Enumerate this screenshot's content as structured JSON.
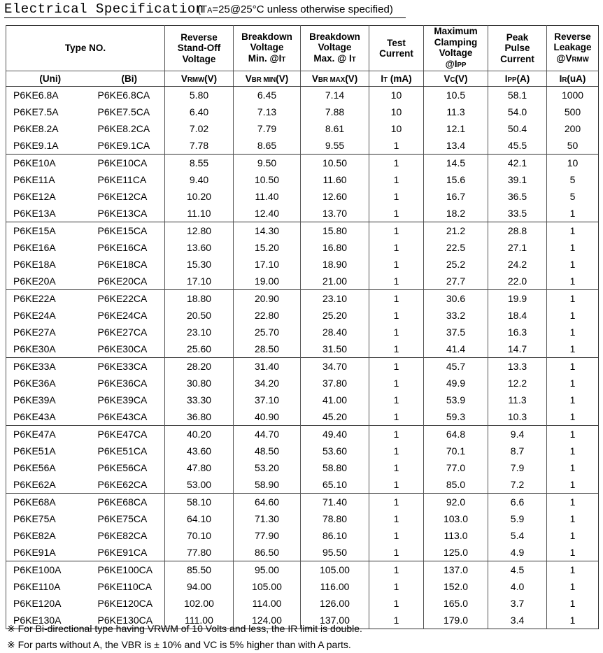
{
  "header": {
    "title": "Electrical Specification",
    "conditions": [
      "(T",
      "A",
      "=25@25°C unless otherwise specified)"
    ]
  },
  "table": {
    "head": [
      {
        "lines": [
          [
            "Type NO."
          ]
        ]
      },
      {
        "lines": [
          [
            "Reverse"
          ],
          [
            "Stand-Off"
          ],
          [
            "Voltage"
          ]
        ]
      },
      {
        "lines": [
          [
            "Breakdown"
          ],
          [
            "Voltage"
          ],
          [
            "Min. @I",
            "T"
          ]
        ]
      },
      {
        "lines": [
          [
            "Breakdown"
          ],
          [
            "Voltage"
          ],
          [
            "Max. @ I",
            "T"
          ]
        ]
      },
      {
        "lines": [
          [
            "Test"
          ],
          [
            "Current"
          ]
        ]
      },
      {
        "lines": [
          [
            "Maximum"
          ],
          [
            "Clamping"
          ],
          [
            "Voltage"
          ],
          [
            "@I",
            "PP"
          ]
        ]
      },
      {
        "lines": [
          [
            "Peak"
          ],
          [
            "Pulse"
          ],
          [
            "Current"
          ]
        ]
      },
      {
        "lines": [
          [
            "Reverse"
          ],
          [
            "Leakage"
          ],
          [
            "@V",
            "RMW"
          ]
        ]
      }
    ],
    "units": [
      [
        "(Uni)"
      ],
      [
        "(Bi)"
      ],
      [
        "V",
        "RMW",
        "(V)"
      ],
      [
        "V",
        "BR MIN",
        "(V)"
      ],
      [
        "V",
        "BR MAX",
        "(V)"
      ],
      [
        "I",
        "T",
        " (mA)"
      ],
      [
        "V",
        "C",
        "(V)"
      ],
      [
        "I",
        "PP",
        "(A)"
      ],
      [
        "I",
        "R",
        "(uA)"
      ]
    ],
    "rows": [
      [
        "P6KE6.8A",
        "P6KE6.8CA",
        "5.80",
        "6.45",
        "7.14",
        "10",
        "10.5",
        "58.1",
        "1000"
      ],
      [
        "P6KE7.5A",
        "P6KE7.5CA",
        "6.40",
        "7.13",
        "7.88",
        "10",
        "11.3",
        "54.0",
        "500"
      ],
      [
        "P6KE8.2A",
        "P6KE8.2CA",
        "7.02",
        "7.79",
        "8.61",
        "10",
        "12.1",
        "50.4",
        "200"
      ],
      [
        "P6KE9.1A",
        "P6KE9.1CA",
        "7.78",
        "8.65",
        "9.55",
        "1",
        "13.4",
        "45.5",
        "50"
      ],
      [
        "P6KE10A",
        "P6KE10CA",
        "8.55",
        "9.50",
        "10.50",
        "1",
        "14.5",
        "42.1",
        "10"
      ],
      [
        "P6KE11A",
        "P6KE11CA",
        "9.40",
        "10.50",
        "11.60",
        "1",
        "15.6",
        "39.1",
        "5"
      ],
      [
        "P6KE12A",
        "P6KE12CA",
        "10.20",
        "11.40",
        "12.60",
        "1",
        "16.7",
        "36.5",
        "5"
      ],
      [
        "P6KE13A",
        "P6KE13CA",
        "11.10",
        "12.40",
        "13.70",
        "1",
        "18.2",
        "33.5",
        "1"
      ],
      [
        "P6KE15A",
        "P6KE15CA",
        "12.80",
        "14.30",
        "15.80",
        "1",
        "21.2",
        "28.8",
        "1"
      ],
      [
        "P6KE16A",
        "P6KE16CA",
        "13.60",
        "15.20",
        "16.80",
        "1",
        "22.5",
        "27.1",
        "1"
      ],
      [
        "P6KE18A",
        "P6KE18CA",
        "15.30",
        "17.10",
        "18.90",
        "1",
        "25.2",
        "24.2",
        "1"
      ],
      [
        "P6KE20A",
        "P6KE20CA",
        "17.10",
        "19.00",
        "21.00",
        "1",
        "27.7",
        "22.0",
        "1"
      ],
      [
        "P6KE22A",
        "P6KE22CA",
        "18.80",
        "20.90",
        "23.10",
        "1",
        "30.6",
        "19.9",
        "1"
      ],
      [
        "P6KE24A",
        "P6KE24CA",
        "20.50",
        "22.80",
        "25.20",
        "1",
        "33.2",
        "18.4",
        "1"
      ],
      [
        "P6KE27A",
        "P6KE27CA",
        "23.10",
        "25.70",
        "28.40",
        "1",
        "37.5",
        "16.3",
        "1"
      ],
      [
        "P6KE30A",
        "P6KE30CA",
        "25.60",
        "28.50",
        "31.50",
        "1",
        "41.4",
        "14.7",
        "1"
      ],
      [
        "P6KE33A",
        "P6KE33CA",
        "28.20",
        "31.40",
        "34.70",
        "1",
        "45.7",
        "13.3",
        "1"
      ],
      [
        "P6KE36A",
        "P6KE36CA",
        "30.80",
        "34.20",
        "37.80",
        "1",
        "49.9",
        "12.2",
        "1"
      ],
      [
        "P6KE39A",
        "P6KE39CA",
        "33.30",
        "37.10",
        "41.00",
        "1",
        "53.9",
        "11.3",
        "1"
      ],
      [
        "P6KE43A",
        "P6KE43CA",
        "36.80",
        "40.90",
        "45.20",
        "1",
        "59.3",
        "10.3",
        "1"
      ],
      [
        "P6KE47A",
        "P6KE47CA",
        "40.20",
        "44.70",
        "49.40",
        "1",
        "64.8",
        "9.4",
        "1"
      ],
      [
        "P6KE51A",
        "P6KE51CA",
        "43.60",
        "48.50",
        "53.60",
        "1",
        "70.1",
        "8.7",
        "1"
      ],
      [
        "P6KE56A",
        "P6KE56CA",
        "47.80",
        "53.20",
        "58.80",
        "1",
        "77.0",
        "7.9",
        "1"
      ],
      [
        "P6KE62A",
        "P6KE62CA",
        "53.00",
        "58.90",
        "65.10",
        "1",
        "85.0",
        "7.2",
        "1"
      ],
      [
        "P6KE68A",
        "P6KE68CA",
        "58.10",
        "64.60",
        "71.40",
        "1",
        "92.0",
        "6.6",
        "1"
      ],
      [
        "P6KE75A",
        "P6KE75CA",
        "64.10",
        "71.30",
        "78.80",
        "1",
        "103.0",
        "5.9",
        "1"
      ],
      [
        "P6KE82A",
        "P6KE82CA",
        "70.10",
        "77.90",
        "86.10",
        "1",
        "113.0",
        "5.4",
        "1"
      ],
      [
        "P6KE91A",
        "P6KE91CA",
        "77.80",
        "86.50",
        "95.50",
        "1",
        "125.0",
        "4.9",
        "1"
      ],
      [
        "P6KE100A",
        "P6KE100CA",
        "85.50",
        "95.00",
        "105.00",
        "1",
        "137.0",
        "4.5",
        "1"
      ],
      [
        "P6KE110A",
        "P6KE110CA",
        "94.00",
        "105.00",
        "116.00",
        "1",
        "152.0",
        "4.0",
        "1"
      ],
      [
        "P6KE120A",
        "P6KE120CA",
        "102.00",
        "114.00",
        "126.00",
        "1",
        "165.0",
        "3.7",
        "1"
      ],
      [
        "P6KE130A",
        "P6KE130CA",
        "111.00",
        "124.00",
        "137.00",
        "1",
        "179.0",
        "3.4",
        "1"
      ]
    ]
  },
  "notes": [
    "※  For Bi-directional type having VRWM of 10 Volts and less, the IR limit is double.",
    "※  For parts without A, the VBR is  ±  10% and VC is 5% higher than with A parts."
  ]
}
